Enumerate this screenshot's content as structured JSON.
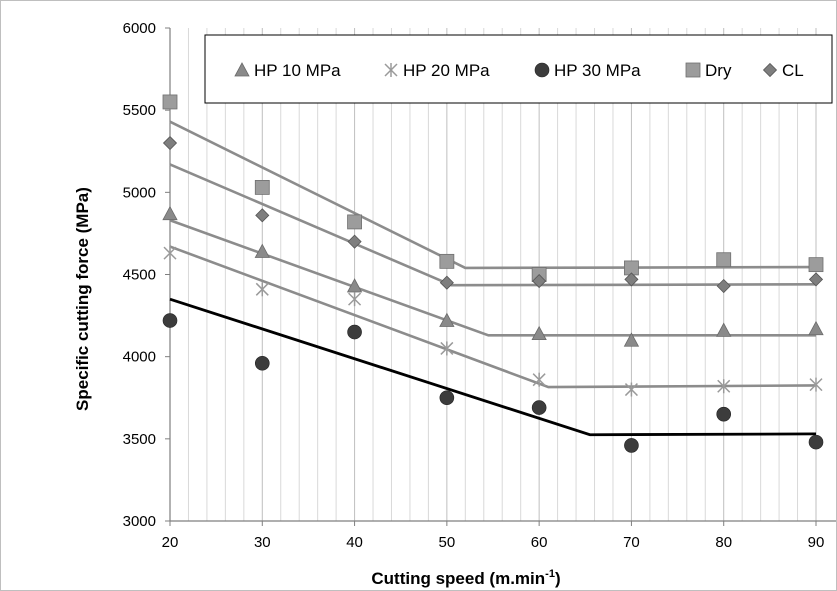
{
  "chart_data": {
    "type": "scatter",
    "xlabel": "Cutting speed (m.min",
    "xlabel_superscript": "-1",
    "xlabel_suffix": ")",
    "ylabel": "Specific cutting force  (MPa)",
    "xlim": [
      20,
      90
    ],
    "ylim": [
      3000,
      6000
    ],
    "x_ticks": [
      "20",
      "30",
      "40",
      "50",
      "60",
      "70",
      "80",
      "90"
    ],
    "y_ticks": [
      "3000",
      "3500",
      "4000",
      "4500",
      "5000",
      "5500",
      "6000"
    ],
    "grid": "vertical minor",
    "legend_position": "top",
    "x": [
      20,
      30,
      40,
      50,
      60,
      70,
      80,
      90
    ],
    "series": [
      {
        "name": "HP 10 MPa",
        "marker": "triangle",
        "color": "#8a8a8a",
        "values": [
          4870,
          4640,
          4430,
          4220,
          4140,
          4100,
          4160,
          4170
        ],
        "trend": [
          [
            20,
            4830
          ],
          [
            54.5,
            4130
          ],
          [
            90,
            4130
          ]
        ]
      },
      {
        "name": "HP 20 MPa",
        "marker": "star",
        "color": "#9a9a9a",
        "values": [
          4630,
          4410,
          4350,
          4050,
          3860,
          3800,
          3820,
          3830
        ],
        "trend": [
          [
            20,
            4670
          ],
          [
            61,
            3815
          ],
          [
            90,
            3825
          ]
        ]
      },
      {
        "name": "HP 30 MPa",
        "marker": "circle",
        "color": "#3c3c3c",
        "values": [
          4220,
          3960,
          4150,
          3750,
          3690,
          3460,
          3650,
          3480
        ],
        "trend": [
          [
            20,
            4350
          ],
          [
            65.5,
            3525
          ],
          [
            90,
            3530
          ]
        ]
      },
      {
        "name": "Dry",
        "marker": "square",
        "color": "#9c9c9c",
        "values": [
          5550,
          5030,
          4820,
          4580,
          4500,
          4540,
          4590,
          4560
        ],
        "trend": [
          [
            20,
            5430
          ],
          [
            52,
            4540
          ],
          [
            90,
            4545
          ]
        ]
      },
      {
        "name": "CL",
        "marker": "diamond",
        "color": "#7e7e7e",
        "values": [
          5300,
          4860,
          4700,
          4450,
          4460,
          4470,
          4430,
          4470
        ],
        "trend": [
          [
            20,
            5170
          ],
          [
            50.5,
            4435
          ],
          [
            90,
            4440
          ]
        ]
      }
    ]
  }
}
